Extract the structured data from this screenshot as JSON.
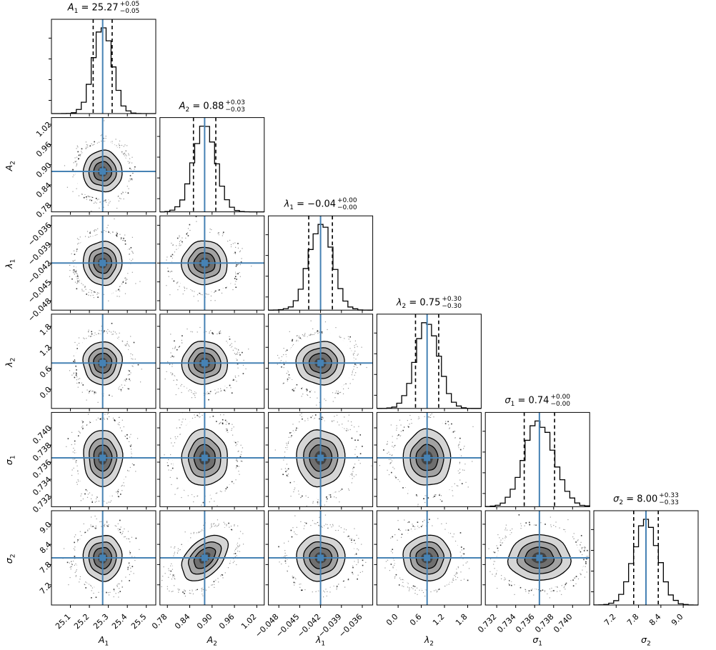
{
  "chart_data": {
    "type": "scatter",
    "subtype": "corner-plot",
    "description": "Corner (triangle) plot of 6 MCMC posterior parameters: histograms on the diagonal with median/quantile lines, 2D scatter clouds with filled density contours below, steel-blue truth crosshairs on every panel.",
    "style": {
      "truth_color": "#4682b4",
      "line_color": "#000000",
      "scatter_color": "#000000",
      "background": "#ffffff",
      "equals": "=",
      "quantiles": [
        0.16,
        0.84
      ],
      "contour_fills": [
        "#ffffff",
        "#d5d5d5",
        "#a2a2a2",
        "#6f6f6f",
        "#424242"
      ],
      "contour_sigma_levels": [
        2.85,
        2.05,
        1.45,
        0.95,
        0.5
      ]
    },
    "parameters": [
      {
        "id": "A1",
        "var": "A",
        "sub": "1",
        "title": {
          "value": "25.27",
          "plus": "+0.05",
          "minus": "−0.05"
        },
        "mean": 25.27,
        "sigma": 0.05,
        "truth": 25.27,
        "range": [
          25.0,
          25.55
        ],
        "ticks": [
          25.1,
          25.2,
          25.3,
          25.4,
          25.5
        ],
        "tick_labels": [
          "25.1",
          "25.2",
          "25.3",
          "25.4",
          "25.5"
        ]
      },
      {
        "id": "A2",
        "var": "A",
        "sub": "2",
        "title": {
          "value": "0.88",
          "plus": "+0.03",
          "minus": "−0.03"
        },
        "mean": 0.88,
        "sigma": 0.03,
        "truth": 0.88,
        "range": [
          0.76,
          1.04
        ],
        "ticks": [
          0.78,
          0.84,
          0.9,
          0.96,
          1.02
        ],
        "tick_labels": [
          "0.78",
          "0.84",
          "0.90",
          "0.96",
          "1.02"
        ]
      },
      {
        "id": "lambda1",
        "var": "λ",
        "sub": "1",
        "title": {
          "value": "−0.04",
          "plus": "+0.00",
          "minus": "−0.00"
        },
        "mean": -0.042,
        "sigma": 0.0017,
        "truth": -0.042,
        "range": [
          -0.0495,
          -0.0345
        ],
        "ticks": [
          -0.048,
          -0.045,
          -0.042,
          -0.039,
          -0.036
        ],
        "tick_labels": [
          "−0.048",
          "−0.045",
          "−0.042",
          "−0.039",
          "−0.036"
        ]
      },
      {
        "id": "lambda2",
        "var": "λ",
        "sub": "2",
        "title": {
          "value": "0.75",
          "plus": "+0.30",
          "minus": "−0.30"
        },
        "mean": 0.75,
        "sigma": 0.3,
        "truth": 0.75,
        "range": [
          -0.55,
          2.15
        ],
        "ticks": [
          0.0,
          0.6,
          1.2,
          1.8
        ],
        "tick_labels": [
          "0.0",
          "0.6",
          "1.2",
          "1.8"
        ]
      },
      {
        "id": "sigma1",
        "var": "σ",
        "sub": "1",
        "title": {
          "value": "0.74",
          "plus": "+0.00",
          "minus": "−0.00"
        },
        "mean": 0.7365,
        "sigma": 0.0016,
        "truth": 0.7365,
        "range": [
          0.7308,
          0.7418
        ],
        "ticks": [
          0.732,
          0.734,
          0.736,
          0.738,
          0.74
        ],
        "tick_labels": [
          "0.732",
          "0.734",
          "0.736",
          "0.738",
          "0.740"
        ]
      },
      {
        "id": "sigma2",
        "var": "σ",
        "sub": "2",
        "title": {
          "value": "8.00",
          "plus": "+0.33",
          "minus": "−0.33"
        },
        "mean": 8.0,
        "sigma": 0.33,
        "truth": 8.0,
        "range": [
          6.6,
          9.4
        ],
        "ticks": [
          7.2,
          7.8,
          8.4,
          9.0
        ],
        "tick_labels": [
          "7.2",
          "7.8",
          "8.4",
          "9.0"
        ]
      }
    ],
    "correlations": [
      {
        "x_param": "A2",
        "y_param": "sigma2",
        "rho": 0.45
      }
    ]
  }
}
